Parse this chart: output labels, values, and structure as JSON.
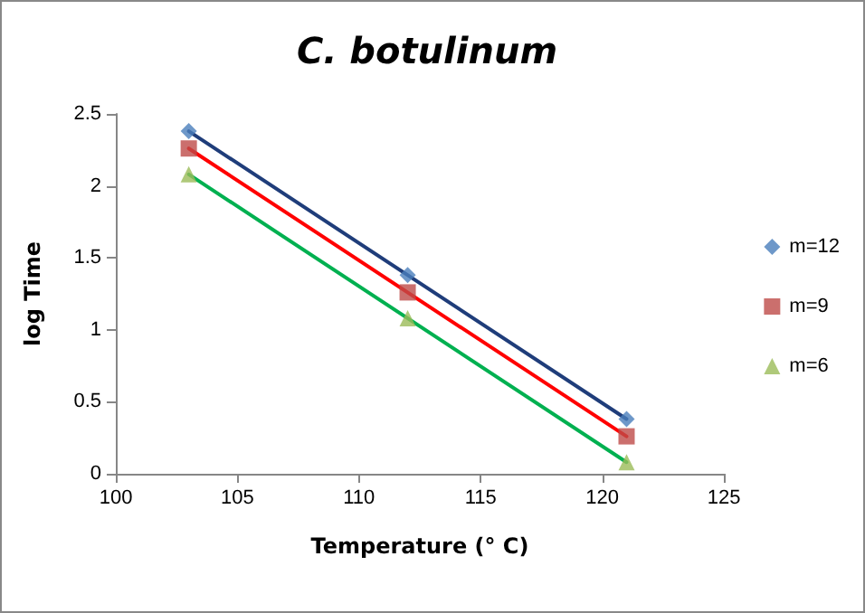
{
  "chart_data": {
    "type": "scatter",
    "title": "C. botulinum",
    "xlabel": "Temperature (° C)",
    "ylabel": "log Time",
    "xlim": [
      100,
      125
    ],
    "xticks": [
      100,
      105,
      110,
      115,
      120,
      125
    ],
    "ylim": [
      0,
      2.5
    ],
    "yticks": [
      0,
      0.5,
      1,
      1.5,
      2,
      2.5
    ],
    "grid": false,
    "legend": "right",
    "series": [
      {
        "name": "m=12",
        "color": "#4a7ebb",
        "marker": "diamond",
        "x": [
          103,
          112,
          121
        ],
        "values": [
          2.38,
          1.38,
          0.38
        ]
      },
      {
        "name": "m=9",
        "color": "#be4b48",
        "marker": "square",
        "x": [
          103,
          112,
          121
        ],
        "values": [
          2.26,
          1.26,
          0.26
        ]
      },
      {
        "name": "m=6",
        "color": "#9bbb59",
        "marker": "triangle",
        "x": [
          103,
          112,
          121
        ],
        "values": [
          2.08,
          1.08,
          0.08
        ]
      },
      {
        "type": "line",
        "color": "#1f3d7a",
        "marker": "none",
        "x": [
          103,
          121
        ],
        "values": [
          2.38,
          0.38
        ]
      },
      {
        "type": "line",
        "color": "#ff0000",
        "marker": "none",
        "x": [
          103,
          121
        ],
        "values": [
          2.26,
          0.26
        ]
      },
      {
        "type": "line",
        "color": "#00b050",
        "marker": "none",
        "x": [
          103,
          121
        ],
        "values": [
          2.08,
          0.08
        ]
      }
    ]
  }
}
